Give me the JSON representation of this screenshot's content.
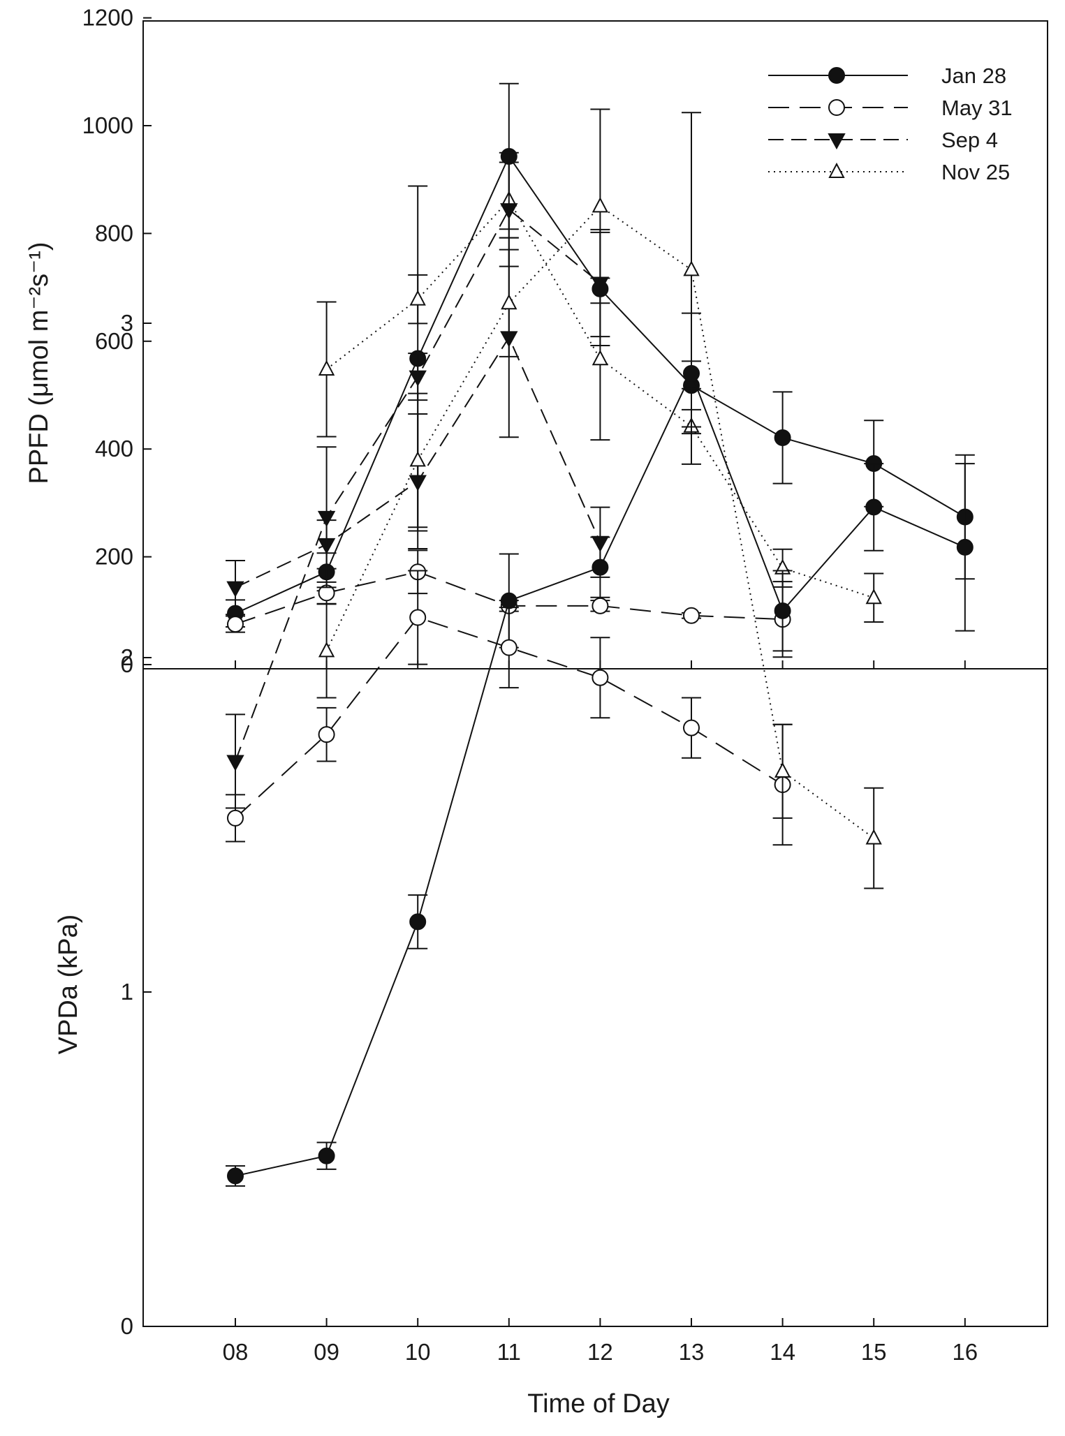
{
  "chart_data": [
    {
      "type": "line",
      "panel": "top",
      "xlabel": "",
      "ylabel": "PPFD (μmol m⁻²s⁻¹)",
      "ylim": [
        0,
        1200
      ],
      "yticks": [
        "0",
        "200",
        "400",
        "600",
        "800",
        "1000",
        "1200"
      ],
      "legend": "top-right",
      "grid": false,
      "series": [
        {
          "name": "Jan 28",
          "marker": "circle-filled",
          "dash": "solid",
          "x": [
            8,
            9,
            10,
            11,
            12,
            13,
            14,
            15,
            16
          ],
          "y": [
            95,
            172,
            568,
            943,
            697,
            518,
            421,
            373,
            274
          ],
          "err": [
            25,
            35,
            320,
            135,
            105,
            45,
            85,
            80,
            115
          ]
        },
        {
          "name": "May 31",
          "marker": "circle-open",
          "dash": "long-dash",
          "x": [
            8,
            9,
            10,
            11,
            12,
            13,
            14
          ],
          "y": [
            75,
            133,
            172,
            109,
            109,
            91,
            84
          ],
          "err": [
            15,
            20,
            40,
            10,
            10,
            5,
            70
          ]
        },
        {
          "name": "Sep 4",
          "marker": "triangle-down-filled",
          "dash": "dash",
          "x": [
            8,
            9,
            10,
            11,
            12
          ],
          "y": [
            143,
            223,
            340,
            607,
            227
          ],
          "err": [
            50,
            45,
            125,
            185,
            65
          ]
        },
        {
          "name": "Nov 25",
          "marker": "triangle-up-open",
          "dash": "dot",
          "x": [
            9,
            10,
            11,
            12,
            13,
            14,
            15
          ],
          "y": [
            548,
            678,
            862,
            567,
            442,
            179,
            124
          ],
          "err": [
            125,
            45,
            70,
            150,
            70,
            35,
            45
          ]
        }
      ]
    },
    {
      "type": "line",
      "panel": "bottom",
      "xlabel": "Time of Day",
      "ylabel": "VPDa (kPa)",
      "ylim": [
        0,
        3.7
      ],
      "yticks": [
        "0",
        "1",
        "2",
        "3"
      ],
      "xticks": [
        "08",
        "09",
        "10",
        "11",
        "12",
        "13",
        "14",
        "15",
        "16"
      ],
      "grid": false,
      "series": [
        {
          "name": "Jan 28",
          "marker": "circle-filled",
          "dash": "solid",
          "x": [
            8,
            9,
            10,
            11,
            12,
            13,
            14,
            15,
            16
          ],
          "y": [
            0.45,
            0.51,
            1.21,
            2.17,
            2.27,
            2.85,
            2.14,
            2.45,
            2.33
          ],
          "err": [
            0.03,
            0.04,
            0.08,
            0.14,
            0.09,
            0.18,
            0.12,
            0.13,
            0.25
          ]
        },
        {
          "name": "May 31",
          "marker": "circle-open",
          "dash": "long-dash",
          "x": [
            8,
            9,
            10,
            11,
            12,
            13,
            14
          ],
          "y": [
            1.52,
            1.77,
            2.12,
            2.03,
            1.94,
            1.79,
            1.62
          ],
          "err": [
            0.07,
            0.08,
            0.14,
            0.12,
            0.12,
            0.09,
            0.18
          ]
        },
        {
          "name": "Sep 4",
          "marker": "triangle-down-filled",
          "dash": "dash",
          "x": [
            8,
            9,
            10,
            11,
            12
          ],
          "y": [
            1.69,
            2.42,
            2.84,
            3.34,
            3.12
          ],
          "err": [
            0.14,
            0.21,
            0.07,
            0.17,
            0.16
          ]
        },
        {
          "name": "Nov 25",
          "marker": "triangle-up-open",
          "dash": "dot",
          "x": [
            9,
            10,
            11,
            12,
            13,
            14,
            15
          ],
          "y": [
            2.02,
            2.59,
            3.06,
            3.35,
            3.16,
            1.66,
            1.46
          ],
          "err": [
            0.14,
            0.2,
            0.16,
            0.29,
            0.47,
            0.14,
            0.15
          ]
        }
      ]
    }
  ]
}
